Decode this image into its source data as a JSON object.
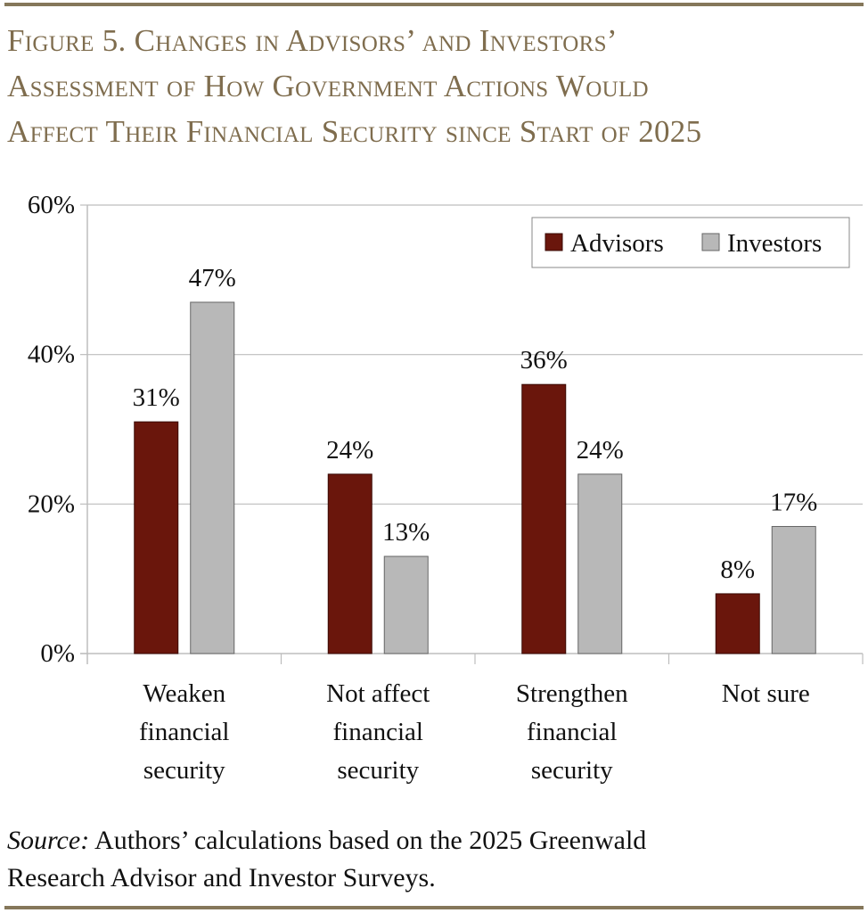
{
  "title_lines": [
    "Figure 5. Changes in Advisors’ and Investors’",
    "Assessment of How Government Actions Would",
    "Affect Their Financial Security since Start of 2025"
  ],
  "source": {
    "label": "Source:",
    "text": " Authors’ calculations based on the 2025 Greenwald",
    "text2": "Research Advisor and Investor Surveys."
  },
  "chart_data": {
    "type": "bar",
    "title": "Figure 5. Changes in Advisors’ and Investors’ Assessment of How Government Actions Would Affect Their Financial Security since Start of 2025",
    "categories": [
      [
        "Weaken",
        "financial",
        "security"
      ],
      [
        "Not affect",
        "financial",
        "security"
      ],
      [
        "Strengthen",
        "financial",
        "security"
      ],
      [
        "Not sure"
      ]
    ],
    "series": [
      {
        "name": "Advisors",
        "values": [
          31,
          24,
          36,
          8
        ],
        "color": "#6a160c"
      },
      {
        "name": "Investors",
        "values": [
          47,
          13,
          24,
          17
        ],
        "color": "#b8b8b8"
      }
    ],
    "data_label_suffix": "%",
    "ylim": [
      0,
      60
    ],
    "yticks": [
      0,
      20,
      40,
      60
    ],
    "ytick_labels": [
      "0%",
      "20%",
      "40%",
      "60%"
    ],
    "grid": true,
    "legend": "top-right"
  }
}
